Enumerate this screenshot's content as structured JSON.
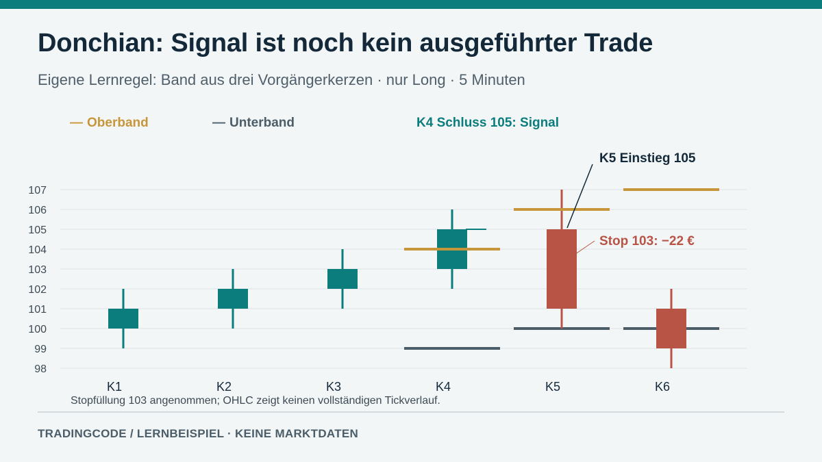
{
  "header": {
    "title": "Donchian: Signal ist noch kein ausgeführter Trade",
    "subtitle": "Eigene Lernregel: Band aus drei Vorgängerkerzen · nur Long · 5 Minuten"
  },
  "legend": {
    "dash": "—",
    "upper": "Oberband",
    "lower": "Unterband",
    "signal": "K4 Schluss 105: Signal"
  },
  "colors": {
    "teal": "#0b7d7c",
    "red": "#b85445",
    "gold": "#c7963a",
    "slate": "#4b5d68",
    "grid": "#dde3e6"
  },
  "chart_data": {
    "type": "candlestick",
    "ylim": [
      98,
      107
    ],
    "yticks": [
      98,
      99,
      100,
      101,
      102,
      103,
      104,
      105,
      106,
      107
    ],
    "grid": true,
    "candles": [
      {
        "label": "K1",
        "open": 100,
        "high": 102,
        "low": 99,
        "close": 101,
        "color": "#0b7d7c"
      },
      {
        "label": "K2",
        "open": 101,
        "high": 103,
        "low": 100,
        "close": 102,
        "color": "#0b7d7c"
      },
      {
        "label": "K3",
        "open": 102,
        "high": 104,
        "low": 101,
        "close": 103,
        "color": "#0b7d7c"
      },
      {
        "label": "K4",
        "open": 103,
        "high": 106,
        "low": 102,
        "close": 105,
        "color": "#0b7d7c"
      },
      {
        "label": "K5",
        "open": 105,
        "high": 107,
        "low": 100,
        "close": 101,
        "color": "#b85445"
      },
      {
        "label": "K6",
        "open": 101,
        "high": 102,
        "low": 98,
        "close": 99,
        "color": "#b85445"
      }
    ],
    "upper_band": [
      {
        "candle": "K4",
        "value": 104
      },
      {
        "candle": "K5",
        "value": 106
      },
      {
        "candle": "K6",
        "value": 107
      }
    ],
    "lower_band": [
      {
        "candle": "K4",
        "value": 99
      },
      {
        "candle": "K5",
        "value": 100
      },
      {
        "candle": "K6",
        "value": 100
      }
    ],
    "annotations": [
      {
        "id": "entry",
        "text": "K5 Einstieg 105",
        "candle": "K5",
        "price": 105,
        "color": "#13293a"
      },
      {
        "id": "stop",
        "text": "Stop 103: −22 €",
        "candle": "K5",
        "price": 103,
        "color": "#b85445"
      }
    ],
    "signal_close": {
      "candle": "K4",
      "price": 105
    }
  },
  "footnote": "Stopfüllung 103 angenommen; OHLC zeigt keinen vollständigen Tickverlauf.",
  "footer": "TRADINGCODE  /  LERNBEISPIEL · KEINE MARKTDATEN"
}
